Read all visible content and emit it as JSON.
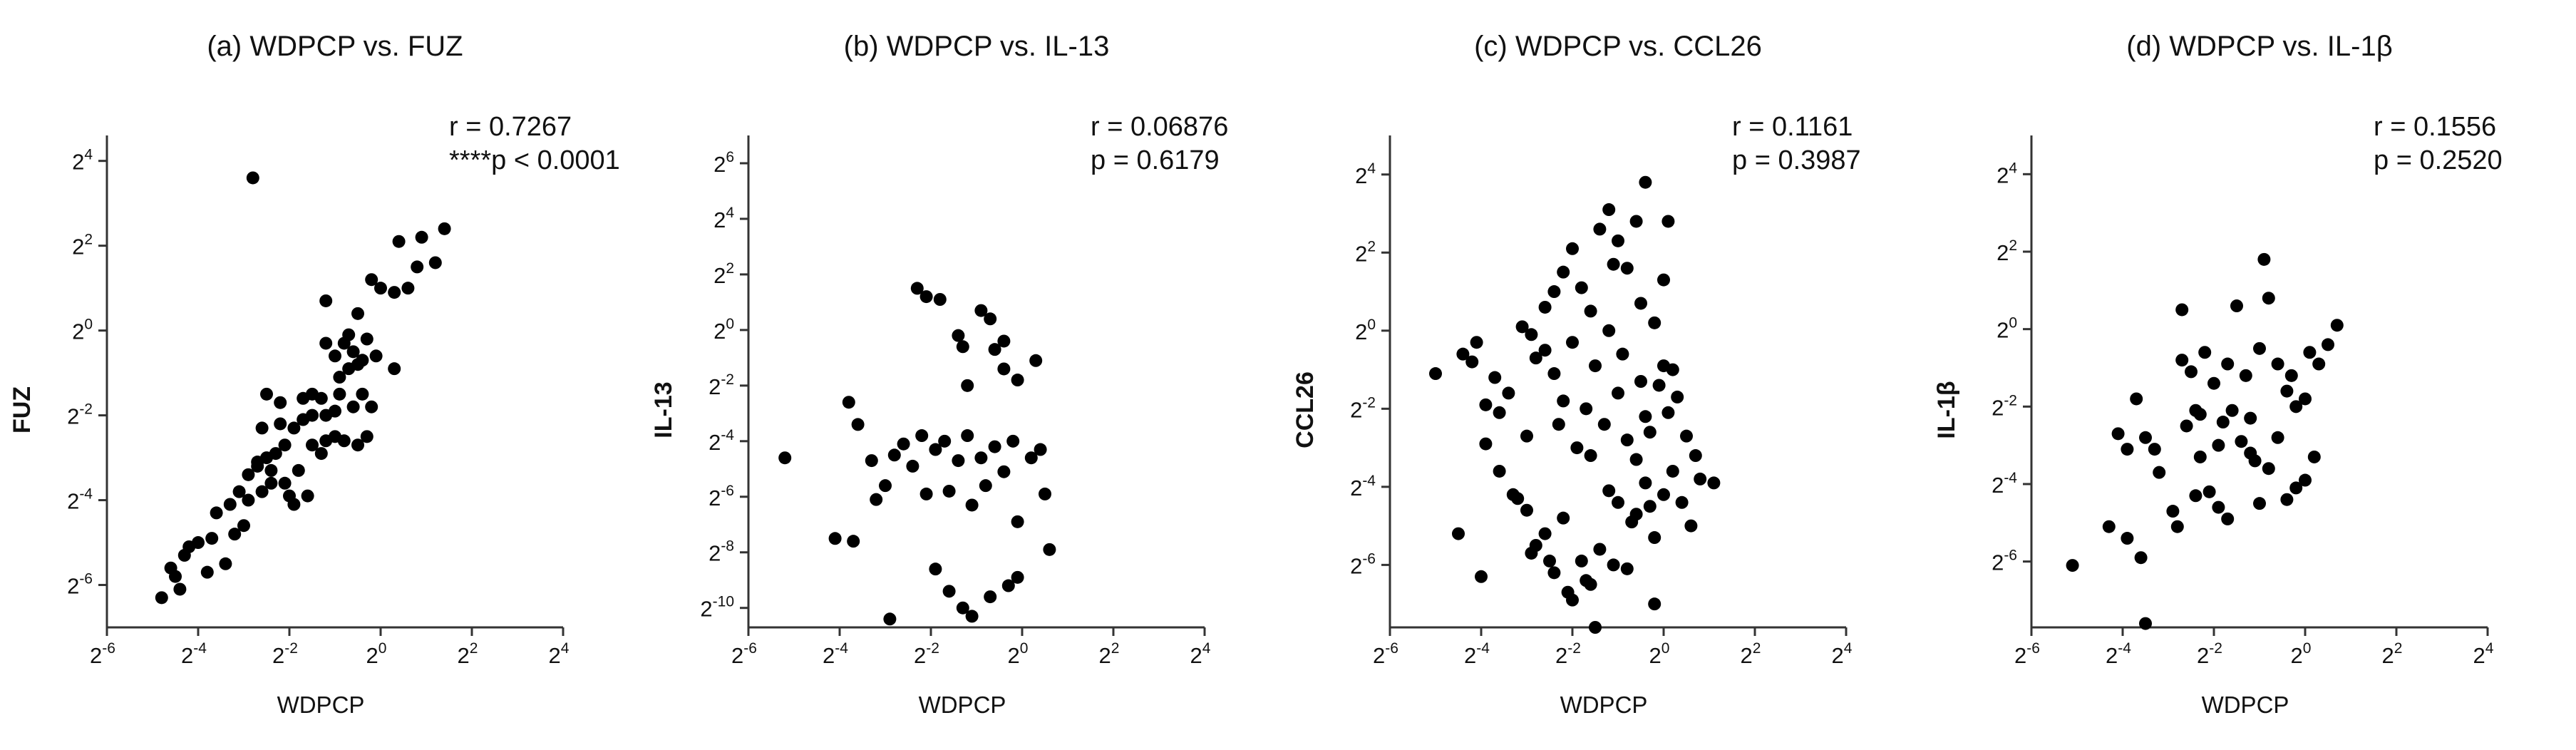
{
  "chart_data": [
    {
      "type": "scatter",
      "title": "(a) WDPCP vs. FUZ",
      "xlabel": "WDPCP",
      "ylabel": "FUZ",
      "stats": [
        "r = 0.7267",
        "****p < 0.0001"
      ],
      "scale": "log2",
      "xlim": [
        -6,
        4
      ],
      "ylim": [
        -7,
        4.6
      ],
      "x_ticks": [
        -6,
        -4,
        -2,
        0,
        2,
        4
      ],
      "y_ticks": [
        -6,
        -4,
        -2,
        0,
        2,
        4
      ],
      "points": [
        [
          -2.8,
          3.6
        ],
        [
          -2.9,
          -4.0
        ],
        [
          -2.6,
          -3.8
        ],
        [
          -2.4,
          -3.6
        ],
        [
          -2.0,
          -3.9
        ],
        [
          -1.9,
          -4.1
        ],
        [
          -1.6,
          -3.9
        ],
        [
          -2.7,
          -3.2
        ],
        [
          -2.5,
          -3.0
        ],
        [
          -2.3,
          -2.9
        ],
        [
          -2.1,
          -2.7
        ],
        [
          -1.8,
          -3.3
        ],
        [
          -1.5,
          -2.7
        ],
        [
          -1.3,
          -2.9
        ],
        [
          -1.2,
          -2.6
        ],
        [
          -1.0,
          -2.5
        ],
        [
          -0.8,
          -2.6
        ],
        [
          -0.5,
          -2.7
        ],
        [
          -0.3,
          -2.5
        ],
        [
          -2.6,
          -2.3
        ],
        [
          -2.2,
          -2.2
        ],
        [
          -1.9,
          -2.3
        ],
        [
          -1.7,
          -2.1
        ],
        [
          -1.5,
          -2.0
        ],
        [
          -1.2,
          -2.0
        ],
        [
          -1.0,
          -1.9
        ],
        [
          -0.9,
          -1.5
        ],
        [
          -2.5,
          -1.5
        ],
        [
          -2.2,
          -1.7
        ],
        [
          -1.7,
          -1.6
        ],
        [
          -1.5,
          -1.5
        ],
        [
          -1.3,
          -1.6
        ],
        [
          -0.6,
          -1.8
        ],
        [
          -0.4,
          -1.5
        ],
        [
          -0.2,
          -1.8
        ],
        [
          -0.7,
          -0.9
        ],
        [
          -0.9,
          -1.1
        ],
        [
          -0.6,
          -0.5
        ],
        [
          -0.4,
          -0.7
        ],
        [
          -0.3,
          -0.2
        ],
        [
          -0.5,
          -0.8
        ],
        [
          -1.0,
          -0.6
        ],
        [
          -1.2,
          -0.3
        ],
        [
          -0.8,
          -0.3
        ],
        [
          -0.7,
          -0.1
        ],
        [
          0.3,
          -0.9
        ],
        [
          -0.5,
          0.4
        ],
        [
          -0.1,
          -0.6
        ],
        [
          -1.2,
          0.7
        ],
        [
          0.0,
          1.0
        ],
        [
          -0.2,
          1.2
        ],
        [
          0.3,
          0.9
        ],
        [
          0.6,
          1.0
        ],
        [
          0.8,
          1.5
        ],
        [
          0.9,
          2.2
        ],
        [
          1.2,
          1.6
        ],
        [
          1.4,
          2.4
        ],
        [
          0.4,
          2.1
        ],
        [
          -3.2,
          -4.8
        ],
        [
          -3.0,
          -4.6
        ],
        [
          -3.4,
          -5.5
        ],
        [
          -3.7,
          -4.9
        ],
        [
          -3.8,
          -5.7
        ],
        [
          -4.2,
          -5.1
        ],
        [
          -4.3,
          -5.3
        ],
        [
          -4.6,
          -5.6
        ],
        [
          -4.8,
          -6.3
        ],
        [
          -4.4,
          -6.1
        ],
        [
          -4.5,
          -5.8
        ],
        [
          -4.0,
          -5.0
        ],
        [
          -3.6,
          -4.3
        ],
        [
          -3.3,
          -4.1
        ],
        [
          -3.1,
          -3.8
        ],
        [
          -2.9,
          -3.4
        ],
        [
          -2.7,
          -3.1
        ],
        [
          -2.4,
          -3.3
        ],
        [
          -2.1,
          -3.6
        ]
      ]
    },
    {
      "type": "scatter",
      "title": "(b) WDPCP vs. IL-13",
      "xlabel": "WDPCP",
      "ylabel": "IL-13",
      "stats": [
        "r = 0.06876",
        "p = 0.6179"
      ],
      "scale": "log2",
      "xlim": [
        -6,
        4
      ],
      "ylim": [
        -10.7,
        7
      ],
      "x_ticks": [
        -6,
        -4,
        -2,
        0,
        2,
        4
      ],
      "y_ticks": [
        -10,
        -8,
        -6,
        -4,
        -2,
        0,
        2,
        4,
        6
      ],
      "points": [
        [
          -5.2,
          -4.6
        ],
        [
          -4.1,
          -7.5
        ],
        [
          -3.7,
          -7.6
        ],
        [
          -3.8,
          -2.6
        ],
        [
          -3.6,
          -3.4
        ],
        [
          -3.3,
          -4.7
        ],
        [
          -3.0,
          -5.6
        ],
        [
          -2.6,
          -4.1
        ],
        [
          -2.4,
          -4.9
        ],
        [
          -2.2,
          -3.8
        ],
        [
          -2.1,
          -5.9
        ],
        [
          -1.9,
          -4.3
        ],
        [
          -1.7,
          -4.0
        ],
        [
          -1.6,
          -5.8
        ],
        [
          -1.4,
          -4.7
        ],
        [
          -1.2,
          -3.8
        ],
        [
          -1.1,
          -6.3
        ],
        [
          -0.9,
          -4.6
        ],
        [
          -0.8,
          -5.6
        ],
        [
          -0.6,
          -4.2
        ],
        [
          -0.4,
          -5.1
        ],
        [
          -0.2,
          -4.0
        ],
        [
          -0.1,
          -6.9
        ],
        [
          0.2,
          -4.6
        ],
        [
          0.4,
          -4.3
        ],
        [
          0.5,
          -5.9
        ],
        [
          0.6,
          -7.9
        ],
        [
          -2.3,
          1.5
        ],
        [
          -2.1,
          1.2
        ],
        [
          -1.8,
          1.1
        ],
        [
          -1.3,
          -0.6
        ],
        [
          -1.2,
          -2.0
        ],
        [
          -0.9,
          0.7
        ],
        [
          -0.6,
          -0.7
        ],
        [
          -0.4,
          -1.4
        ],
        [
          -0.1,
          -1.8
        ],
        [
          0.3,
          -1.1
        ],
        [
          -1.9,
          -8.6
        ],
        [
          -1.6,
          -9.4
        ],
        [
          -1.3,
          -10.0
        ],
        [
          -1.1,
          -10.3
        ],
        [
          -0.7,
          -9.6
        ],
        [
          -0.3,
          -9.2
        ],
        [
          -0.1,
          -8.9
        ],
        [
          -2.9,
          -10.4
        ],
        [
          -1.4,
          -0.2
        ],
        [
          -0.7,
          0.4
        ],
        [
          -0.4,
          -0.4
        ],
        [
          -3.2,
          -6.1
        ],
        [
          -2.8,
          -4.5
        ]
      ]
    },
    {
      "type": "scatter",
      "title": "(c) WDPCP vs. CCL26",
      "xlabel": "WDPCP",
      "ylabel": "CCL26",
      "stats": [
        "r = 0.1161",
        "p = 0.3987"
      ],
      "scale": "log2",
      "xlim": [
        -6,
        4
      ],
      "ylim": [
        -7.6,
        5
      ],
      "x_ticks": [
        -6,
        -4,
        -2,
        0,
        2,
        4
      ],
      "y_ticks": [
        -6,
        -4,
        -2,
        0,
        2,
        4
      ],
      "points": [
        [
          -5.0,
          -1.1
        ],
        [
          -4.4,
          -0.6
        ],
        [
          -4.1,
          -0.3
        ],
        [
          -3.9,
          -1.9
        ],
        [
          -3.7,
          -1.2
        ],
        [
          -3.9,
          -2.9
        ],
        [
          -3.6,
          -3.6
        ],
        [
          -3.2,
          -4.3
        ],
        [
          -3.0,
          -2.7
        ],
        [
          -2.8,
          -0.7
        ],
        [
          -2.6,
          -0.5
        ],
        [
          -2.4,
          -1.1
        ],
        [
          -2.2,
          -1.8
        ],
        [
          -2.0,
          -0.3
        ],
        [
          -2.6,
          0.6
        ],
        [
          -2.4,
          1.0
        ],
        [
          -2.2,
          1.5
        ],
        [
          -2.0,
          2.1
        ],
        [
          -1.8,
          1.1
        ],
        [
          -1.6,
          0.5
        ],
        [
          -1.4,
          2.6
        ],
        [
          -1.2,
          3.1
        ],
        [
          -1.0,
          2.3
        ],
        [
          -0.8,
          1.6
        ],
        [
          -0.6,
          2.8
        ],
        [
          -0.4,
          3.8
        ],
        [
          -0.5,
          0.7
        ],
        [
          -0.2,
          0.2
        ],
        [
          0.0,
          1.3
        ],
        [
          0.1,
          2.8
        ],
        [
          -3.3,
          -4.2
        ],
        [
          -3.0,
          -4.6
        ],
        [
          -2.8,
          -5.5
        ],
        [
          -2.6,
          -5.2
        ],
        [
          -2.4,
          -6.2
        ],
        [
          -2.2,
          -4.8
        ],
        [
          -2.0,
          -6.9
        ],
        [
          -1.8,
          -5.9
        ],
        [
          -1.6,
          -6.5
        ],
        [
          -1.4,
          -5.6
        ],
        [
          -1.2,
          -4.1
        ],
        [
          -1.0,
          -4.4
        ],
        [
          -0.8,
          -6.1
        ],
        [
          -0.6,
          -4.7
        ],
        [
          -0.4,
          -3.9
        ],
        [
          -0.2,
          -5.3
        ],
        [
          0.0,
          -4.2
        ],
        [
          0.2,
          -3.6
        ],
        [
          0.4,
          -4.4
        ],
        [
          0.6,
          -5.0
        ],
        [
          0.8,
          -3.8
        ],
        [
          -1.6,
          -3.2
        ],
        [
          -1.3,
          -2.4
        ],
        [
          -1.0,
          -1.6
        ],
        [
          -0.8,
          -2.8
        ],
        [
          -0.6,
          -3.3
        ],
        [
          -0.3,
          -2.6
        ],
        [
          0.1,
          -2.1
        ],
        [
          0.3,
          -1.7
        ],
        [
          -0.5,
          -1.3
        ],
        [
          -0.1,
          -1.4
        ],
        [
          0.5,
          -2.7
        ],
        [
          0.7,
          -3.2
        ],
        [
          1.1,
          -3.9
        ],
        [
          -2.9,
          -5.7
        ],
        [
          -2.5,
          -5.9
        ],
        [
          -2.1,
          -6.7
        ],
        [
          -1.7,
          -6.4
        ],
        [
          -1.1,
          -6.0
        ],
        [
          -0.7,
          -4.9
        ],
        [
          -0.3,
          -4.5
        ],
        [
          -4.5,
          -5.2
        ],
        [
          -4.0,
          -6.3
        ],
        [
          -1.5,
          -7.6
        ],
        [
          -0.2,
          -7.0
        ],
        [
          -1.9,
          -3.0
        ],
        [
          -1.5,
          -0.9
        ],
        [
          -1.2,
          0.0
        ],
        [
          -0.9,
          -0.6
        ],
        [
          -1.7,
          -2.0
        ],
        [
          -3.1,
          0.1
        ],
        [
          -2.9,
          -0.1
        ],
        [
          -2.3,
          -2.4
        ],
        [
          -3.4,
          -1.6
        ],
        [
          -4.2,
          -0.8
        ],
        [
          -3.6,
          -2.1
        ],
        [
          0.2,
          -1.0
        ],
        [
          -0.4,
          -2.2
        ],
        [
          0.0,
          -0.9
        ],
        [
          -1.1,
          1.7
        ]
      ]
    },
    {
      "type": "scatter",
      "title": "(d) WDPCP vs. IL-1β",
      "xlabel": "WDPCP",
      "ylabel": "IL-1β",
      "stats": [
        "r = 0.1556",
        "p = 0.2520"
      ],
      "scale": "log2",
      "xlim": [
        -6,
        4
      ],
      "ylim": [
        -7.7,
        5
      ],
      "x_ticks": [
        -6,
        -4,
        -2,
        0,
        2,
        4
      ],
      "y_ticks": [
        -6,
        -4,
        -2,
        0,
        2,
        4
      ],
      "points": [
        [
          -5.1,
          -6.1
        ],
        [
          -4.3,
          -5.1
        ],
        [
          -3.9,
          -5.4
        ],
        [
          -3.6,
          -5.9
        ],
        [
          -3.5,
          -7.6
        ],
        [
          -4.1,
          -2.7
        ],
        [
          -3.9,
          -3.1
        ],
        [
          -3.7,
          -1.8
        ],
        [
          -3.5,
          -2.8
        ],
        [
          -3.2,
          -3.7
        ],
        [
          -2.9,
          -4.7
        ],
        [
          -2.6,
          -2.5
        ],
        [
          -2.4,
          -2.1
        ],
        [
          -2.3,
          -3.3
        ],
        [
          -2.1,
          -4.2
        ],
        [
          -1.9,
          -3.0
        ],
        [
          -1.8,
          -2.4
        ],
        [
          -1.6,
          -2.1
        ],
        [
          -1.4,
          -2.9
        ],
        [
          -1.2,
          -3.2
        ],
        [
          -1.0,
          -4.5
        ],
        [
          -0.8,
          -3.6
        ],
        [
          -0.6,
          -2.8
        ],
        [
          -0.4,
          -4.4
        ],
        [
          -0.2,
          -4.1
        ],
        [
          0.0,
          -3.9
        ],
        [
          0.2,
          -3.3
        ],
        [
          -2.7,
          -0.8
        ],
        [
          -2.5,
          -1.1
        ],
        [
          -2.2,
          -0.6
        ],
        [
          -2.0,
          -1.4
        ],
        [
          -1.7,
          -0.9
        ],
        [
          -1.5,
          0.6
        ],
        [
          -1.3,
          -1.2
        ],
        [
          -1.0,
          -0.5
        ],
        [
          -0.8,
          0.8
        ],
        [
          -0.6,
          -0.9
        ],
        [
          -0.4,
          -1.6
        ],
        [
          -0.2,
          -2.0
        ],
        [
          0.0,
          -1.8
        ],
        [
          0.1,
          -0.6
        ],
        [
          0.3,
          -0.9
        ],
        [
          0.5,
          -0.4
        ],
        [
          0.7,
          0.1
        ],
        [
          -2.7,
          0.5
        ],
        [
          -0.9,
          1.8
        ],
        [
          -1.2,
          -2.3
        ],
        [
          -2.8,
          -5.1
        ],
        [
          -2.4,
          -4.3
        ],
        [
          -1.7,
          -4.9
        ],
        [
          -1.1,
          -3.4
        ],
        [
          -3.3,
          -3.1
        ],
        [
          -0.3,
          -1.2
        ],
        [
          -1.9,
          -4.6
        ],
        [
          -2.3,
          -2.2
        ]
      ]
    }
  ]
}
